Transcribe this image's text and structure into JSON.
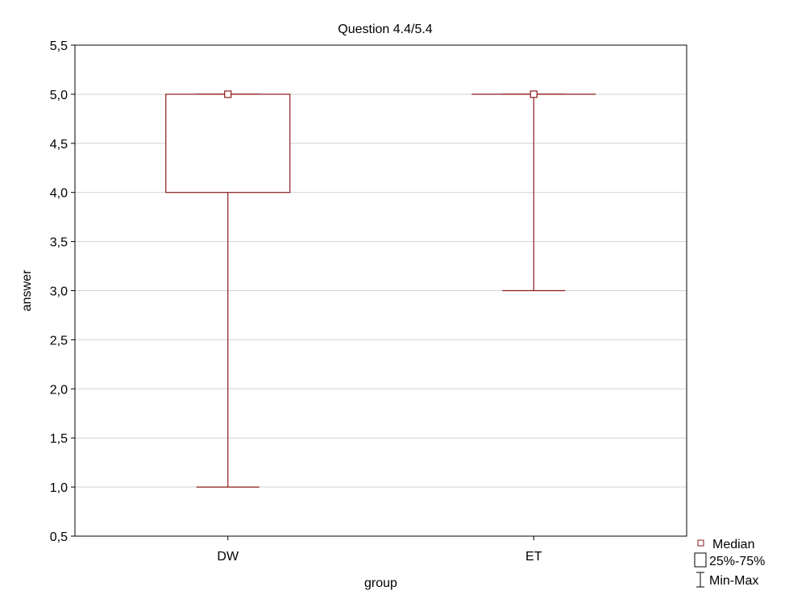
{
  "chart_data": {
    "type": "boxplot",
    "title": "Question 4.4/5.4",
    "xlabel": "group",
    "ylabel": "answer",
    "ylim": [
      0.5,
      5.5
    ],
    "y_ticks": [
      0.5,
      1.0,
      1.5,
      2.0,
      2.5,
      3.0,
      3.5,
      4.0,
      4.5,
      5.0,
      5.5
    ],
    "y_tick_labels": [
      "0,5",
      "1,0",
      "1,5",
      "2,0",
      "2,5",
      "3,0",
      "3,5",
      "4,0",
      "4,5",
      "5,0",
      "5,5"
    ],
    "grid": true,
    "categories": [
      "DW",
      "ET"
    ],
    "boxes": [
      {
        "category": "DW",
        "min": 1.0,
        "q1": 4.0,
        "median": 5.0,
        "q3": 5.0,
        "max": 5.0
      },
      {
        "category": "ET",
        "min": 3.0,
        "q1": 5.0,
        "median": 5.0,
        "q3": 5.0,
        "max": 5.0
      }
    ],
    "legend": {
      "placement": "bottom-right",
      "items": [
        "Median",
        "25%-75%",
        "Min-Max"
      ]
    },
    "colors": {
      "box_stroke": "#8b1a1a",
      "grid": "#d3d3d3",
      "axis": "#000000"
    }
  }
}
